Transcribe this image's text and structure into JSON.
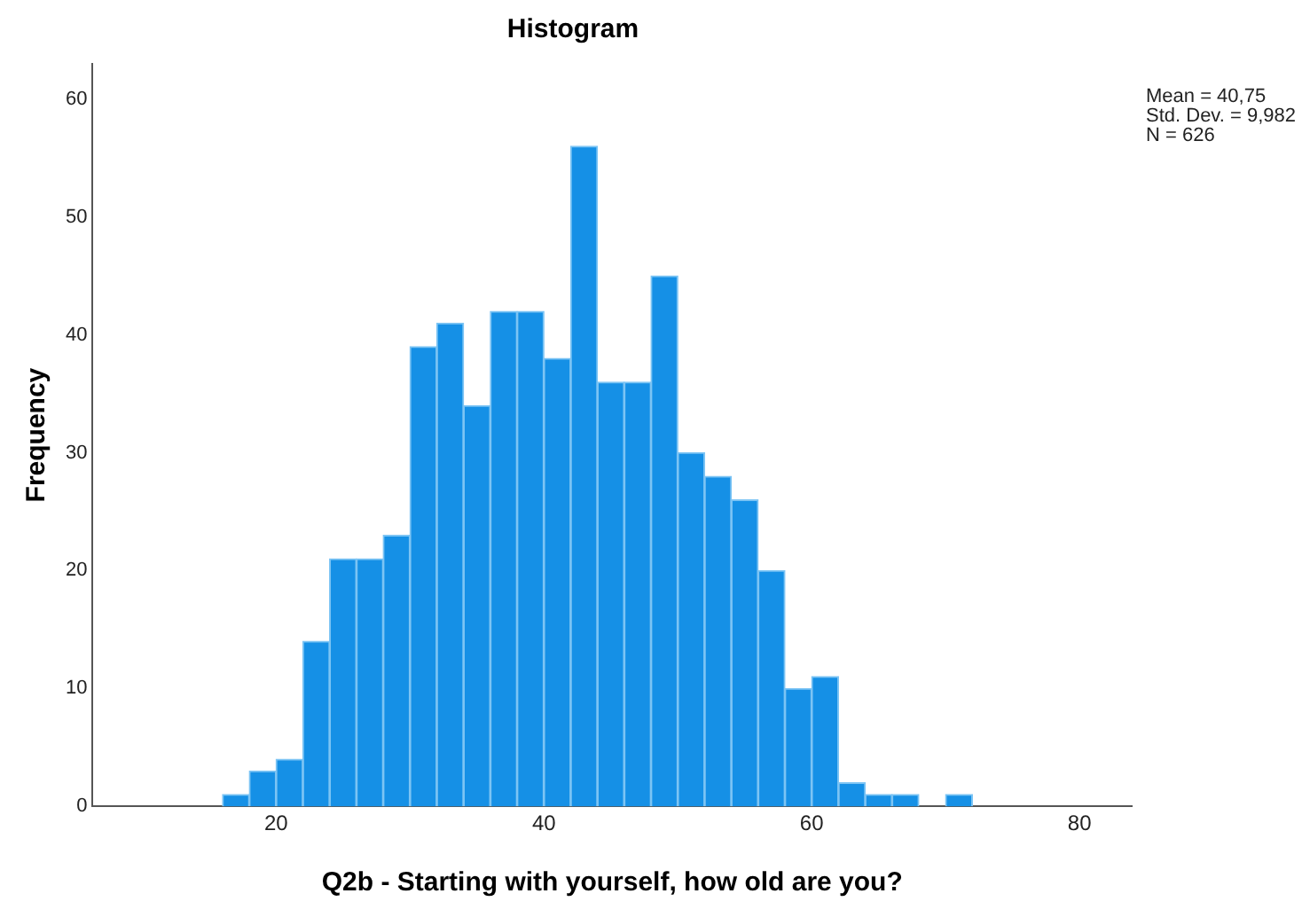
{
  "chart_data": {
    "type": "histogram",
    "title": "Histogram",
    "xlabel": "Q2b - Starting with yourself, how old are you?",
    "ylabel": "Frequency",
    "bins": [
      16,
      18,
      20,
      22,
      24,
      26,
      28,
      30,
      32,
      34,
      36,
      38,
      40,
      42,
      44,
      46,
      48,
      50,
      52,
      54,
      56,
      58,
      60,
      62,
      64,
      66,
      68,
      70,
      72
    ],
    "values": [
      1,
      3,
      4,
      14,
      21,
      21,
      23,
      39,
      41,
      34,
      42,
      42,
      38,
      56,
      36,
      36,
      45,
      30,
      28,
      26,
      20,
      10,
      11,
      2,
      1,
      1,
      0,
      1
    ],
    "color": "#1590e6",
    "xlim": [
      6.3,
      83.9
    ],
    "xticks": [
      20,
      40,
      60,
      80
    ],
    "ylim": [
      0,
      63
    ],
    "yticks": [
      0,
      10,
      20,
      30,
      40,
      50,
      60
    ],
    "grid": false,
    "legend": false,
    "annotations": [
      "Mean = 40,75",
      "Std. Dev. = 9,982",
      "N = 626"
    ]
  }
}
